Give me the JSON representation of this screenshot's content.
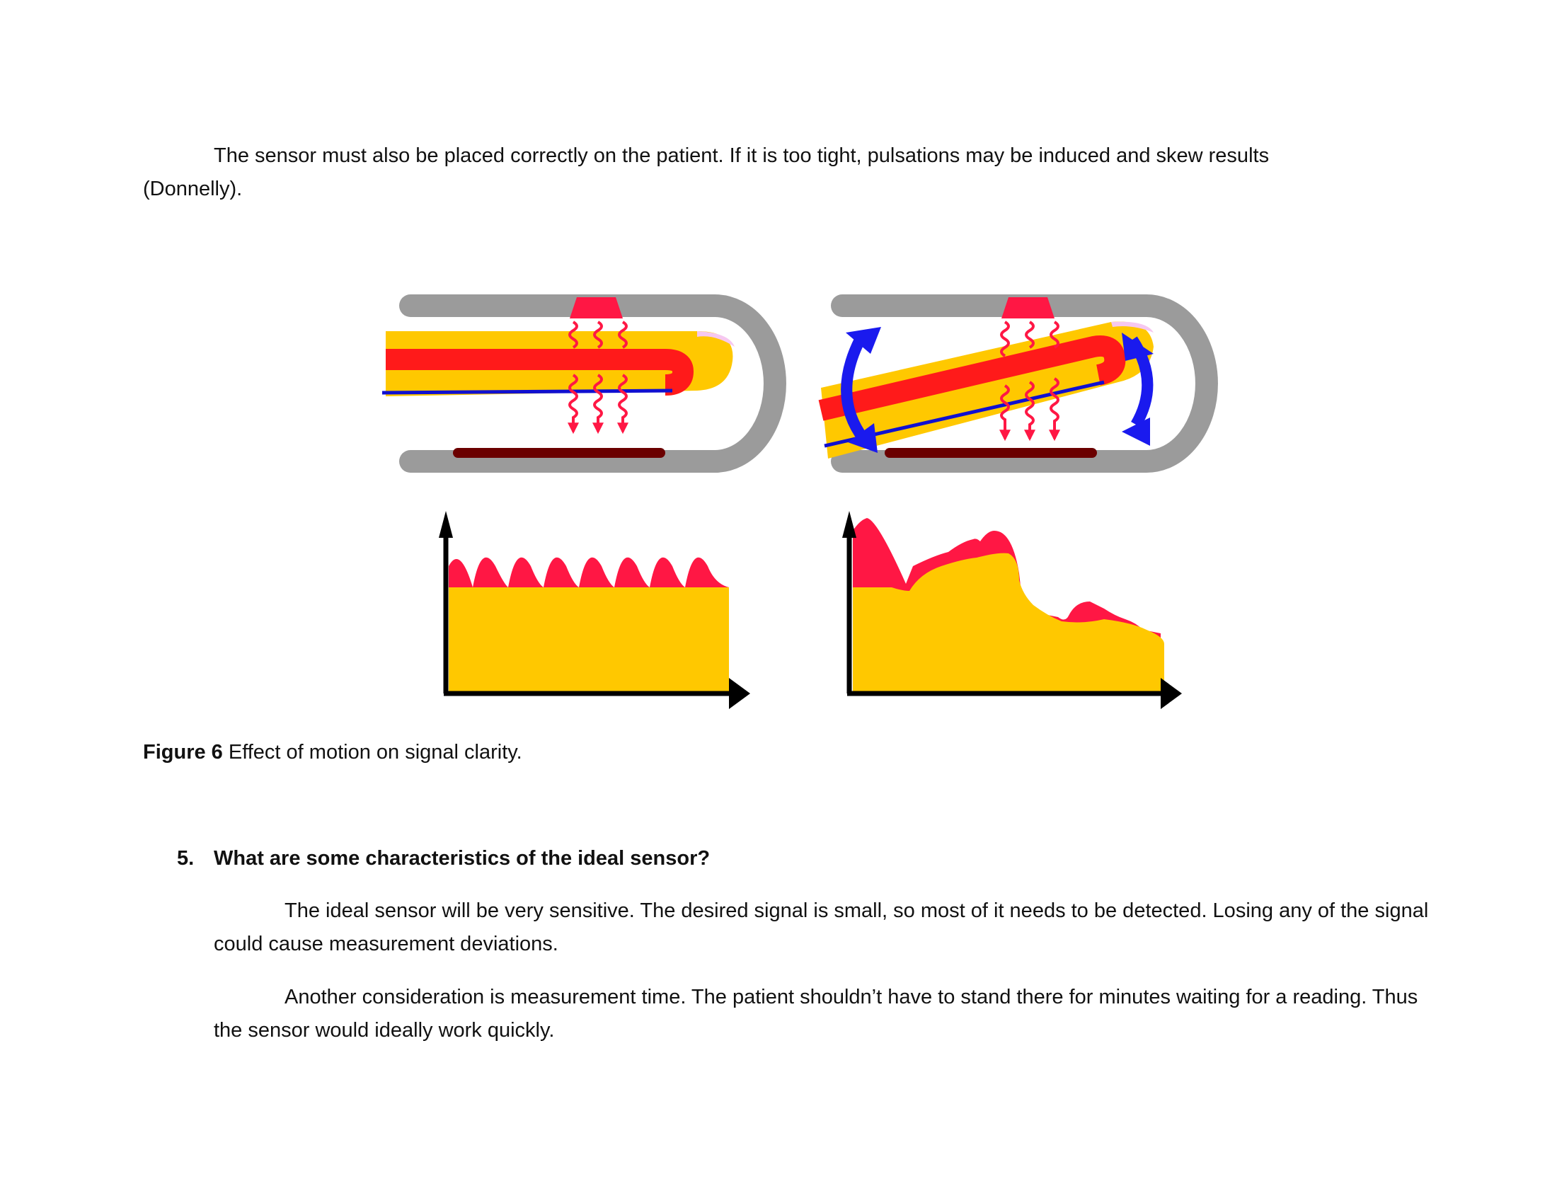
{
  "paragraphs": [
    "The sensor must also be placed correctly on the patient. If it is too tight, pulsations may be induced and skew results (Donnelly).",
    "The ideal sensor will be very sensitive. The desired signal is small, so most of it needs to be detected. Losing any of the signal could cause measurement deviations.",
    "Another consideration is measurement time. The patient shouldn’t have to stand there for minutes waiting for a reading. Thus the sensor would ideally work quickly."
  ],
  "figure": {
    "label": "Figure 6",
    "caption": "Effect of motion on signal clarity.",
    "panels": [
      "finger-sensor-still",
      "finger-sensor-moving"
    ],
    "colors": {
      "housing": "#9b9b9b",
      "finger": "#ffc800",
      "artery": "#ff1a1a",
      "light": "#ff1744",
      "vein": "#1010d0",
      "detector": "#6b0000",
      "motion": "#1a1aee",
      "nail": "#f6c8f0",
      "axes": "#000000"
    }
  },
  "section": {
    "number": "5.",
    "title": "What are some characteristics of the ideal sensor?"
  }
}
